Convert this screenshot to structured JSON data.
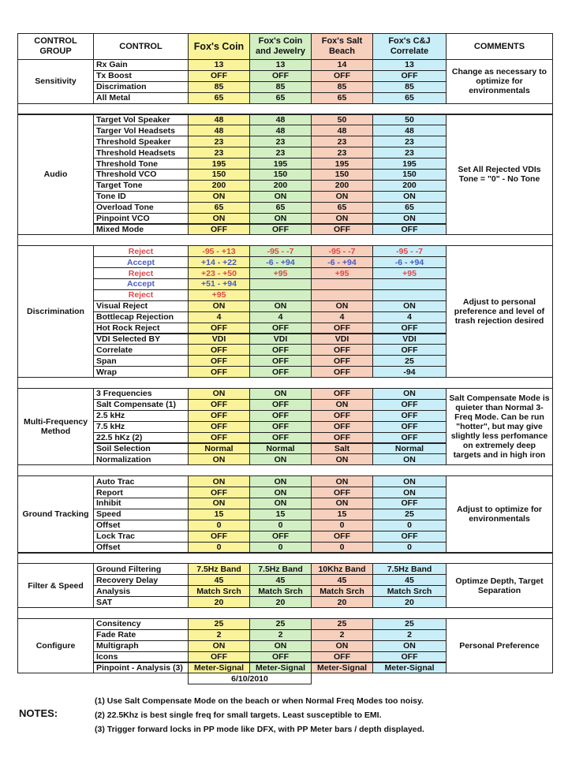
{
  "header": [
    "CONTROL GROUP",
    "CONTROL",
    "Fox's Coin",
    "Fox's Coin and Jewelry",
    "Fox's Salt Beach",
    "Fox's C&J Correlate",
    "COMMENTS"
  ],
  "groups": [
    {
      "name": "Sensitivity",
      "comment": "Change as necessary to optimize for environmentals",
      "rows": [
        {
          "control": "Rx Gain",
          "values": [
            13,
            13,
            14,
            13
          ]
        },
        {
          "control": "Tx Boost",
          "values": [
            "OFF",
            "OFF",
            "OFF",
            "OFF"
          ]
        },
        {
          "control": "Discrimation",
          "values": [
            85,
            85,
            85,
            85
          ]
        },
        {
          "control": "All Metal",
          "values": [
            65,
            65,
            65,
            65
          ]
        }
      ]
    },
    {
      "name": "Audio",
      "comment": "Set All Rejected VDIs Tone = \"0\" - No Tone",
      "rows": [
        {
          "control": "Target Vol Speaker",
          "values": [
            48,
            48,
            50,
            50
          ]
        },
        {
          "control": "Targer Vol Headsets",
          "values": [
            48,
            48,
            48,
            48
          ]
        },
        {
          "control": "Threshold Speaker",
          "values": [
            23,
            23,
            23,
            23
          ]
        },
        {
          "control": "Threshold Headsets",
          "values": [
            23,
            23,
            23,
            23
          ]
        },
        {
          "control": "Threshold Tone",
          "values": [
            195,
            195,
            195,
            195
          ]
        },
        {
          "control": "Threshold VCO",
          "values": [
            150,
            150,
            150,
            150
          ]
        },
        {
          "control": "Target Tone",
          "values": [
            200,
            200,
            200,
            200
          ]
        },
        {
          "control": "Tone ID",
          "values": [
            "ON",
            "ON",
            "ON",
            "ON"
          ]
        },
        {
          "control": "Overload Tone",
          "values": [
            65,
            65,
            65,
            65
          ]
        },
        {
          "control": "Pinpoint VCO",
          "values": [
            "ON",
            "ON",
            "ON",
            "ON"
          ]
        },
        {
          "control": "Mixed Mode",
          "values": [
            "OFF",
            "OFF",
            "OFF",
            "OFF"
          ]
        }
      ]
    },
    {
      "name": "Discrimination",
      "comment": "Adjust to personal preference and level of trash rejection desired",
      "rows": [
        {
          "control": "Reject",
          "color": "#e04848",
          "values": [
            "-95 - +13",
            "-95 - -7",
            "-95 - -7",
            "-95 - -7"
          ]
        },
        {
          "control": "Accept",
          "color": "#4a5cc0",
          "values": [
            "+14 - +22",
            "-6 - +94",
            "-6 - +94",
            "-6 - +94"
          ]
        },
        {
          "control": "Reject",
          "color": "#e04848",
          "values": [
            "+23 - +50",
            "+95",
            "+95",
            "+95"
          ]
        },
        {
          "control": "Accept",
          "color": "#4a5cc0",
          "values": [
            "+51 - +94",
            null,
            null,
            null
          ]
        },
        {
          "control": "Reject",
          "color": "#e04848",
          "values": [
            "+95",
            null,
            null,
            null
          ]
        },
        {
          "control": "Visual Reject",
          "values": [
            "ON",
            "ON",
            "ON",
            "ON"
          ]
        },
        {
          "control": "Bottlecap Rejection",
          "values": [
            4,
            4,
            4,
            4
          ]
        },
        {
          "control": "Hot Rock Reject",
          "values": [
            "OFF",
            "OFF",
            "OFF",
            "OFF"
          ]
        },
        {
          "control": "VDI Selected BY",
          "values": [
            "VDI",
            "VDI",
            "VDI",
            "VDI"
          ]
        },
        {
          "control": "Correlate",
          "values": [
            "OFF",
            "OFF",
            "OFF",
            "OFF"
          ]
        },
        {
          "control": "Span",
          "values": [
            "OFF",
            "OFF",
            "OFF",
            25
          ]
        },
        {
          "control": "Wrap",
          "values": [
            "OFF",
            "OFF",
            "OFF",
            -94
          ]
        }
      ]
    },
    {
      "name": "Multi-Frequency Method",
      "comment": "Salt Compensate Mode is quieter than Normal 3-Freq Mode.  Can be run \"hotter\", but may give slightly less perfomance on extremely deep targets and in high iron",
      "rows": [
        {
          "control": "3 Frequencies",
          "values": [
            "ON",
            "ON",
            "OFF",
            "ON"
          ]
        },
        {
          "control": "Salt Compensate (1)",
          "values": [
            "OFF",
            "OFF",
            "ON",
            "OFF"
          ]
        },
        {
          "control": "2.5 kHz",
          "values": [
            "OFF",
            "OFF",
            "OFF",
            "OFF"
          ]
        },
        {
          "control": "7.5 kHz",
          "values": [
            "OFF",
            "OFF",
            "OFF",
            "OFF"
          ]
        },
        {
          "control": "22.5 hKz (2)",
          "values": [
            "OFF",
            "OFF",
            "OFF",
            "OFF"
          ]
        },
        {
          "control": "Soil Selection",
          "values": [
            "Normal",
            "Normal",
            "Salt",
            "Normal"
          ]
        },
        {
          "control": "Normalization",
          "values": [
            "ON",
            "ON",
            "ON",
            "ON"
          ]
        }
      ]
    },
    {
      "name": "Ground Tracking",
      "comment": "Adjust to optimize for environmentals",
      "rows": [
        {
          "control": "Auto Trac",
          "values": [
            "ON",
            "ON",
            "ON",
            "ON"
          ]
        },
        {
          "control": "Report",
          "values": [
            "OFF",
            "ON",
            "OFF",
            "ON"
          ]
        },
        {
          "control": "Inhibit",
          "values": [
            "ON",
            "ON",
            "ON",
            "OFF"
          ]
        },
        {
          "control": "Speed",
          "values": [
            15,
            15,
            15,
            25
          ]
        },
        {
          "control": "Offset",
          "values": [
            0,
            0,
            0,
            0
          ]
        },
        {
          "control": "Lock Trac",
          "values": [
            "OFF",
            "OFF",
            "OFF",
            "OFF"
          ]
        },
        {
          "control": "Offset",
          "values": [
            0,
            0,
            0,
            0
          ]
        }
      ]
    },
    {
      "name": "Filter & Speed",
      "comment": "Optimze Depth, Target Separation",
      "rows": [
        {
          "control": "Ground Filtering",
          "values": [
            "7.5Hz Band",
            "7.5Hz Band",
            "10Khz Band",
            "7.5Hz Band"
          ]
        },
        {
          "control": "Recovery Delay",
          "values": [
            45,
            45,
            45,
            45
          ]
        },
        {
          "control": "Analysis",
          "values": [
            "Match Srch",
            "Match Srch",
            "Match Srch",
            "Match Srch"
          ]
        },
        {
          "control": "SAT",
          "values": [
            20,
            20,
            20,
            20
          ]
        }
      ]
    },
    {
      "name": "Configure",
      "comment": "Personal Preference",
      "rows": [
        {
          "control": "Consitency",
          "values": [
            25,
            25,
            25,
            25
          ]
        },
        {
          "control": "Fade Rate",
          "values": [
            2,
            2,
            2,
            2
          ]
        },
        {
          "control": "Multigraph",
          "values": [
            "ON",
            "ON",
            "ON",
            "ON"
          ]
        },
        {
          "control": "Icons",
          "values": [
            "OFF",
            "OFF",
            "OFF",
            "OFF"
          ]
        },
        {
          "control": "Pinpoint - Analysis (3)",
          "values": [
            "Meter-Signal",
            "Meter-Signal",
            "Meter-Signal",
            "Meter-Signal"
          ]
        }
      ]
    }
  ],
  "date": "6/10/2010",
  "notes": {
    "label": "NOTES:",
    "items": [
      "(1) Use Salt Compensate Mode on the beach or when Normal Freq Modes too noisy.",
      "(2) 22.5Khz is best single freq for small targets.  Least susceptible to EMI.",
      "(3) Trigger forward locks in PP mode like DFX, with PP Meter bars / depth displayed."
    ]
  }
}
